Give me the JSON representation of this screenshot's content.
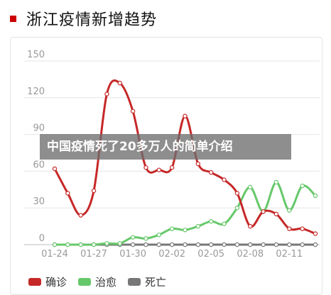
{
  "header": {
    "title": "浙江疫情新增趋势",
    "marker_color": "#cc0000"
  },
  "banner": {
    "text": "中国疫情死了20多万人的简单介绍"
  },
  "chart_data": {
    "type": "line",
    "title": "浙江疫情新增趋势",
    "ylim": [
      0,
      150
    ],
    "yticks": [
      0,
      30,
      60,
      90,
      120,
      150
    ],
    "xtick_labels": [
      "01-24",
      "01-27",
      "01-30",
      "02-02",
      "02-05",
      "02-08",
      "02-11"
    ],
    "grid": "horizontal",
    "legend_position": "bottom-left",
    "x": [
      "01-24",
      "01-25",
      "01-26",
      "01-27",
      "01-28",
      "01-29",
      "01-30",
      "01-31",
      "02-01",
      "02-02",
      "02-03",
      "02-04",
      "02-05",
      "02-06",
      "02-07",
      "02-08",
      "02-09",
      "02-10",
      "02-11",
      "02-12",
      "02-13"
    ],
    "series": [
      {
        "name": "确诊",
        "color": "#c62828",
        "values": [
          62,
          42,
          24,
          44,
          123,
          132,
          109,
          63,
          61,
          63,
          105,
          66,
          59,
          53,
          42,
          15,
          27,
          25,
          13,
          13,
          9
        ]
      },
      {
        "name": "治愈",
        "color": "#66c86a",
        "values": [
          0,
          0,
          0,
          0,
          1,
          1,
          6,
          5,
          8,
          13,
          12,
          15,
          19,
          17,
          30,
          47,
          27,
          51,
          28,
          48,
          40
        ]
      },
      {
        "name": "死亡",
        "color": "#777777",
        "values": [
          0,
          0,
          0,
          0,
          0,
          0,
          0,
          0,
          0,
          0,
          0,
          0,
          0,
          0,
          0,
          0,
          0,
          0,
          0,
          0,
          0
        ]
      }
    ]
  }
}
